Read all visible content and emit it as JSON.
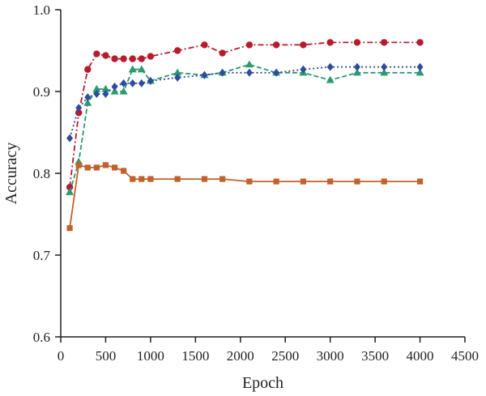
{
  "chart_data": {
    "type": "line",
    "title": "",
    "xlabel": "Epoch",
    "ylabel": "Accuracy",
    "xlim": [
      0,
      4500
    ],
    "ylim": [
      0.6,
      1.0
    ],
    "x_ticks": [
      0,
      500,
      1000,
      1500,
      2000,
      2500,
      3000,
      3500,
      4000,
      4500
    ],
    "y_ticks": [
      0.6,
      0.7,
      0.8,
      0.9,
      1.0
    ],
    "x_tick_labels": [
      "0",
      "500",
      "1000",
      "1500",
      "2000",
      "2500",
      "3000",
      "3500",
      "4000",
      "4500"
    ],
    "y_tick_labels": [
      "0.6",
      "0.7",
      "0.8",
      "0.9",
      "1.0"
    ],
    "grid": false,
    "legend": "none",
    "series": [
      {
        "color": "#b71c2c",
        "marker": "circle",
        "line_style": "dash-dot",
        "points": [
          [
            100,
            0.783
          ],
          [
            200,
            0.874
          ],
          [
            300,
            0.927
          ],
          [
            400,
            0.946
          ],
          [
            500,
            0.944
          ],
          [
            600,
            0.94
          ],
          [
            700,
            0.94
          ],
          [
            800,
            0.94
          ],
          [
            900,
            0.94
          ],
          [
            1000,
            0.943
          ],
          [
            1300,
            0.95
          ],
          [
            1600,
            0.957
          ],
          [
            1800,
            0.947
          ],
          [
            2100,
            0.957
          ],
          [
            2400,
            0.957
          ],
          [
            2700,
            0.957
          ],
          [
            3000,
            0.96
          ],
          [
            3300,
            0.96
          ],
          [
            3600,
            0.96
          ],
          [
            4000,
            0.96
          ]
        ]
      },
      {
        "color": "#2b9a6e",
        "marker": "triangle",
        "line_style": "dashed",
        "points": [
          [
            100,
            0.777
          ],
          [
            200,
            0.814
          ],
          [
            300,
            0.886
          ],
          [
            400,
            0.903
          ],
          [
            500,
            0.903
          ],
          [
            600,
            0.9
          ],
          [
            700,
            0.9
          ],
          [
            800,
            0.927
          ],
          [
            900,
            0.927
          ],
          [
            1000,
            0.913
          ],
          [
            1300,
            0.923
          ],
          [
            1600,
            0.92
          ],
          [
            1800,
            0.923
          ],
          [
            2100,
            0.933
          ],
          [
            2400,
            0.923
          ],
          [
            2700,
            0.923
          ],
          [
            3000,
            0.914
          ],
          [
            3300,
            0.923
          ],
          [
            3600,
            0.923
          ],
          [
            4000,
            0.923
          ]
        ]
      },
      {
        "color": "#2e4c9e",
        "marker": "diamond",
        "line_style": "dotted",
        "points": [
          [
            100,
            0.843
          ],
          [
            200,
            0.88
          ],
          [
            300,
            0.893
          ],
          [
            400,
            0.897
          ],
          [
            500,
            0.897
          ],
          [
            600,
            0.906
          ],
          [
            700,
            0.91
          ],
          [
            800,
            0.91
          ],
          [
            900,
            0.91
          ],
          [
            1000,
            0.913
          ],
          [
            1300,
            0.917
          ],
          [
            1600,
            0.92
          ],
          [
            1800,
            0.923
          ],
          [
            2100,
            0.923
          ],
          [
            2400,
            0.923
          ],
          [
            2700,
            0.927
          ],
          [
            3000,
            0.93
          ],
          [
            3300,
            0.93
          ],
          [
            3600,
            0.93
          ],
          [
            4000,
            0.93
          ]
        ]
      },
      {
        "color": "#c0622a",
        "marker": "square",
        "line_style": "solid",
        "points": [
          [
            100,
            0.733
          ],
          [
            200,
            0.81
          ],
          [
            300,
            0.807
          ],
          [
            400,
            0.807
          ],
          [
            500,
            0.81
          ],
          [
            600,
            0.807
          ],
          [
            700,
            0.803
          ],
          [
            800,
            0.793
          ],
          [
            900,
            0.793
          ],
          [
            1000,
            0.793
          ],
          [
            1300,
            0.793
          ],
          [
            1600,
            0.793
          ],
          [
            1800,
            0.793
          ],
          [
            2100,
            0.79
          ],
          [
            2400,
            0.79
          ],
          [
            2700,
            0.79
          ],
          [
            3000,
            0.79
          ],
          [
            3300,
            0.79
          ],
          [
            3600,
            0.79
          ],
          [
            4000,
            0.79
          ]
        ]
      }
    ]
  }
}
